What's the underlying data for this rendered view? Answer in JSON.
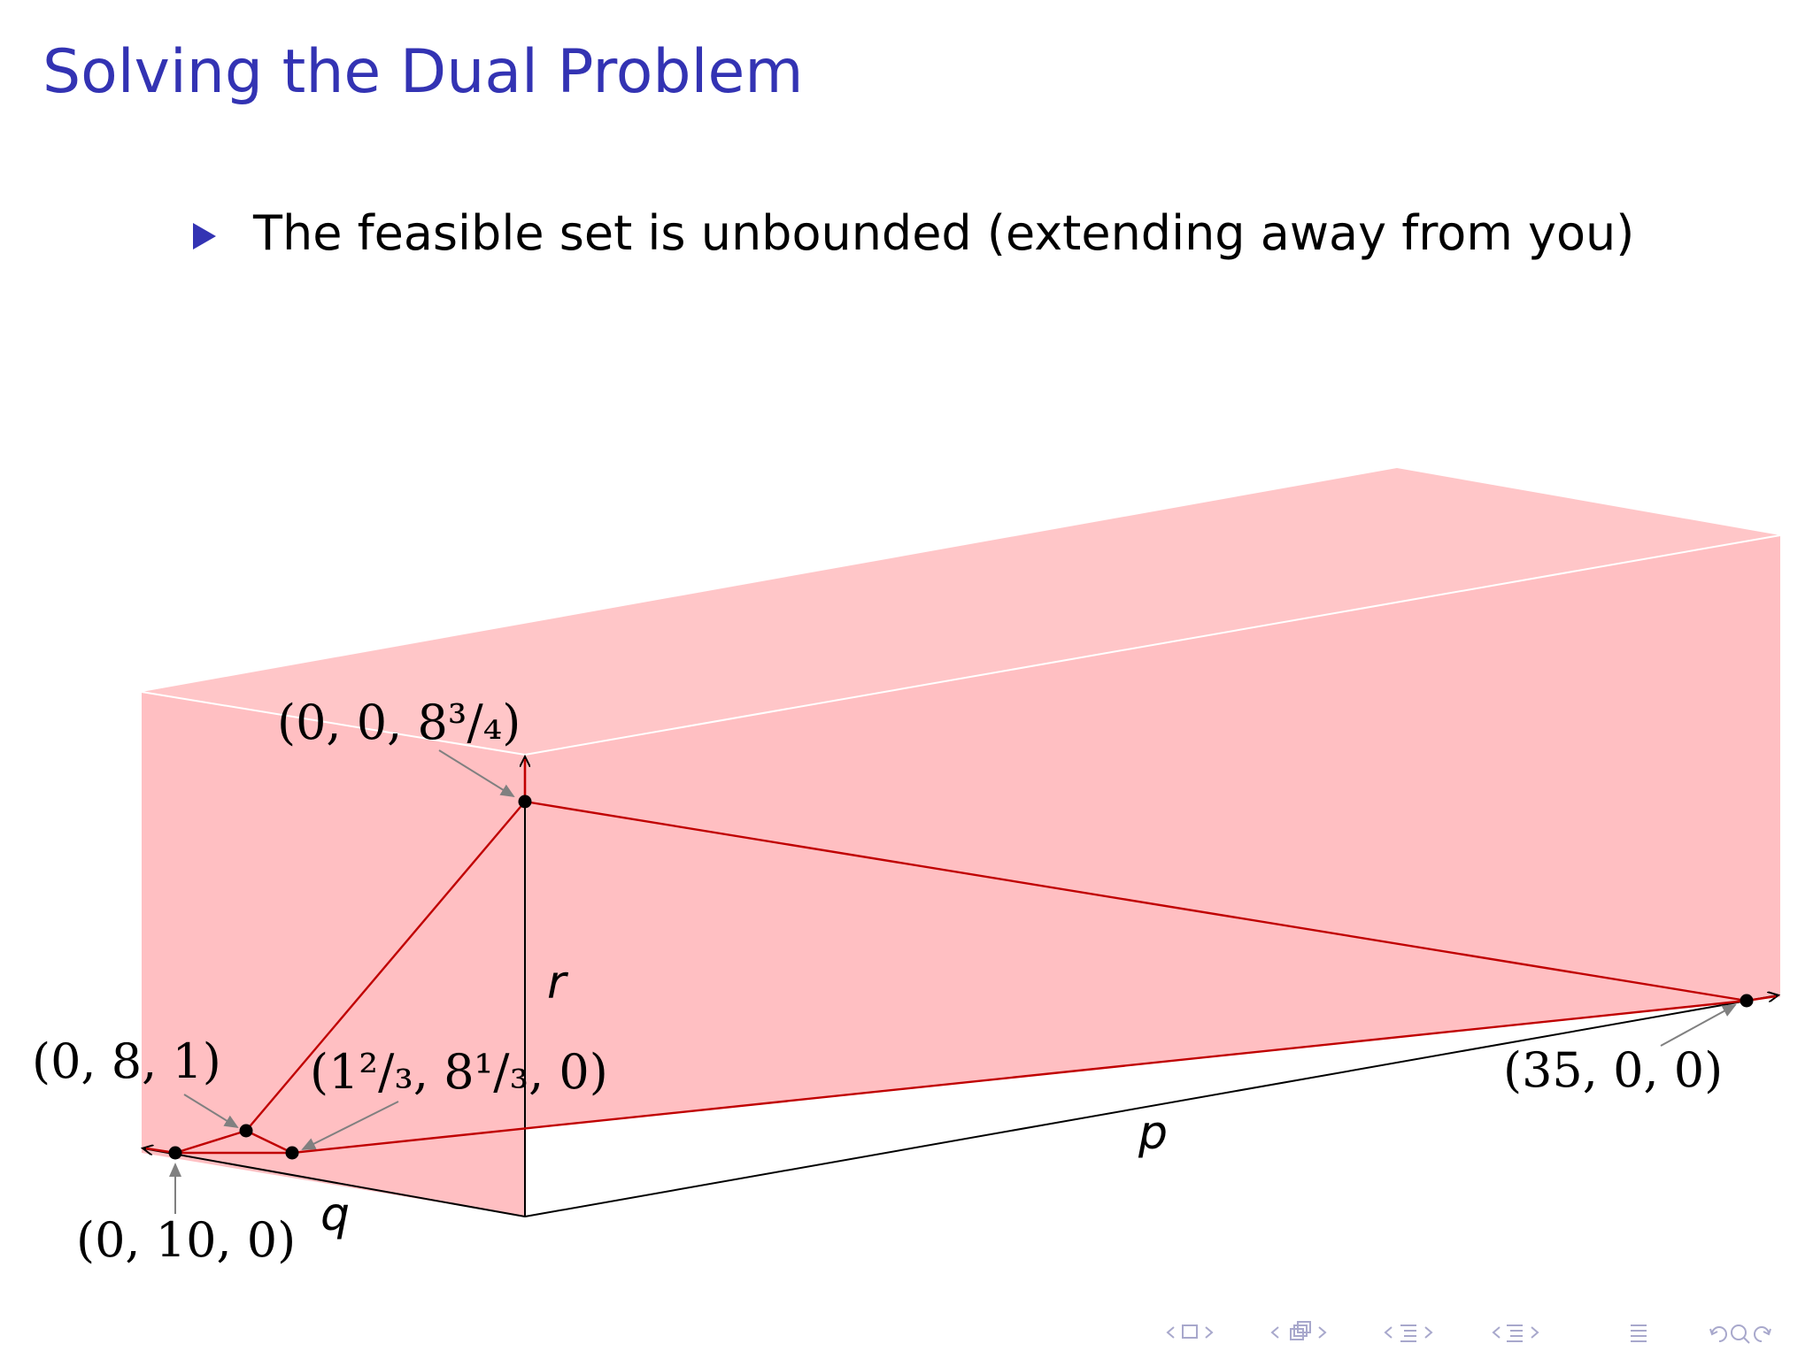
{
  "slide": {
    "title": "Solving the Dual Problem",
    "bullet": "The feasible set is unbounded (extending away from you)"
  },
  "diagram": {
    "axes": {
      "p": "p",
      "q": "q",
      "r": "r"
    },
    "vertices": {
      "v_35_0_0": "(35, 0, 0)",
      "v_0_0_8_3_4": "(0, 0, 8³/₄)",
      "v_0_8_1": "(0, 8, 1)",
      "v_1_2_3": "(1²/₃, 8¹/₃, 0)",
      "v_0_10_0": "(0, 10, 0)"
    }
  },
  "colors": {
    "title": "#3333b3",
    "feasible_fill": "#ffbfc2",
    "feasible_edge": "#c00000",
    "callout_arrow": "#808080"
  },
  "navigation": {
    "icons": [
      "nav-prev-icon",
      "nav-frame-icon",
      "nav-next-icon",
      "nav-prev-section-icon",
      "nav-section-icon",
      "nav-next-section-icon",
      "nav-prev-subsection-icon",
      "nav-subsection-icon",
      "nav-next-subsection-icon",
      "nav-back-icon",
      "nav-toc-icon",
      "nav-zoom-icon"
    ]
  }
}
